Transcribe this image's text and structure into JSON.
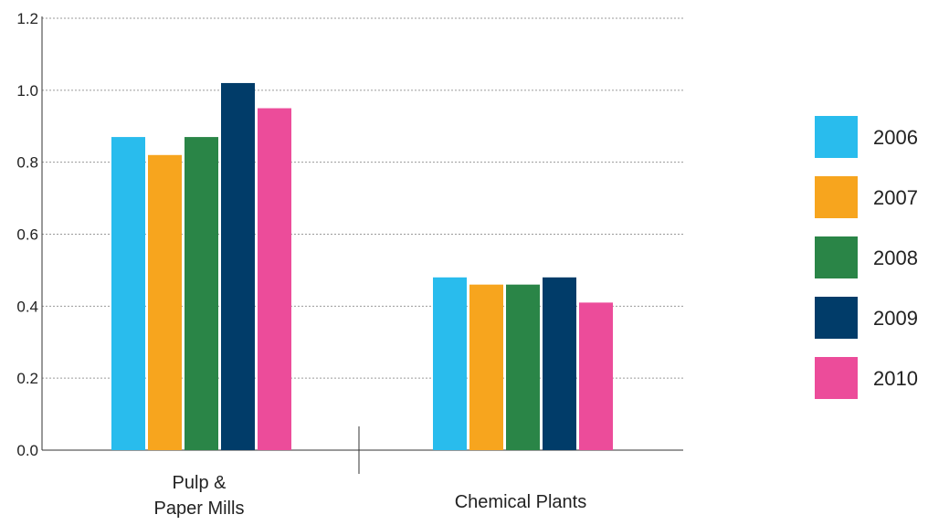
{
  "chart_data": {
    "type": "bar",
    "categories": [
      "Pulp &\nPaper Mills",
      "Chemical Plants"
    ],
    "series": [
      {
        "name": "2006",
        "color": "#29bced",
        "values": [
          0.87,
          0.48
        ]
      },
      {
        "name": "2007",
        "color": "#f7a51e",
        "values": [
          0.82,
          0.46
        ]
      },
      {
        "name": "2008",
        "color": "#2a8547",
        "values": [
          0.87,
          0.46
        ]
      },
      {
        "name": "2009",
        "color": "#013c69",
        "values": [
          1.02,
          0.48
        ]
      },
      {
        "name": "2010",
        "color": "#ec4c9a",
        "values": [
          0.95,
          0.41
        ]
      }
    ],
    "yticks": [
      "0.0",
      "0.2",
      "0.4",
      "0.6",
      "0.8",
      "1.0",
      "1.2"
    ],
    "ylim": [
      0,
      1.2
    ],
    "grid": true,
    "legend_position": "right",
    "title": "",
    "xlabel": "",
    "ylabel": ""
  }
}
